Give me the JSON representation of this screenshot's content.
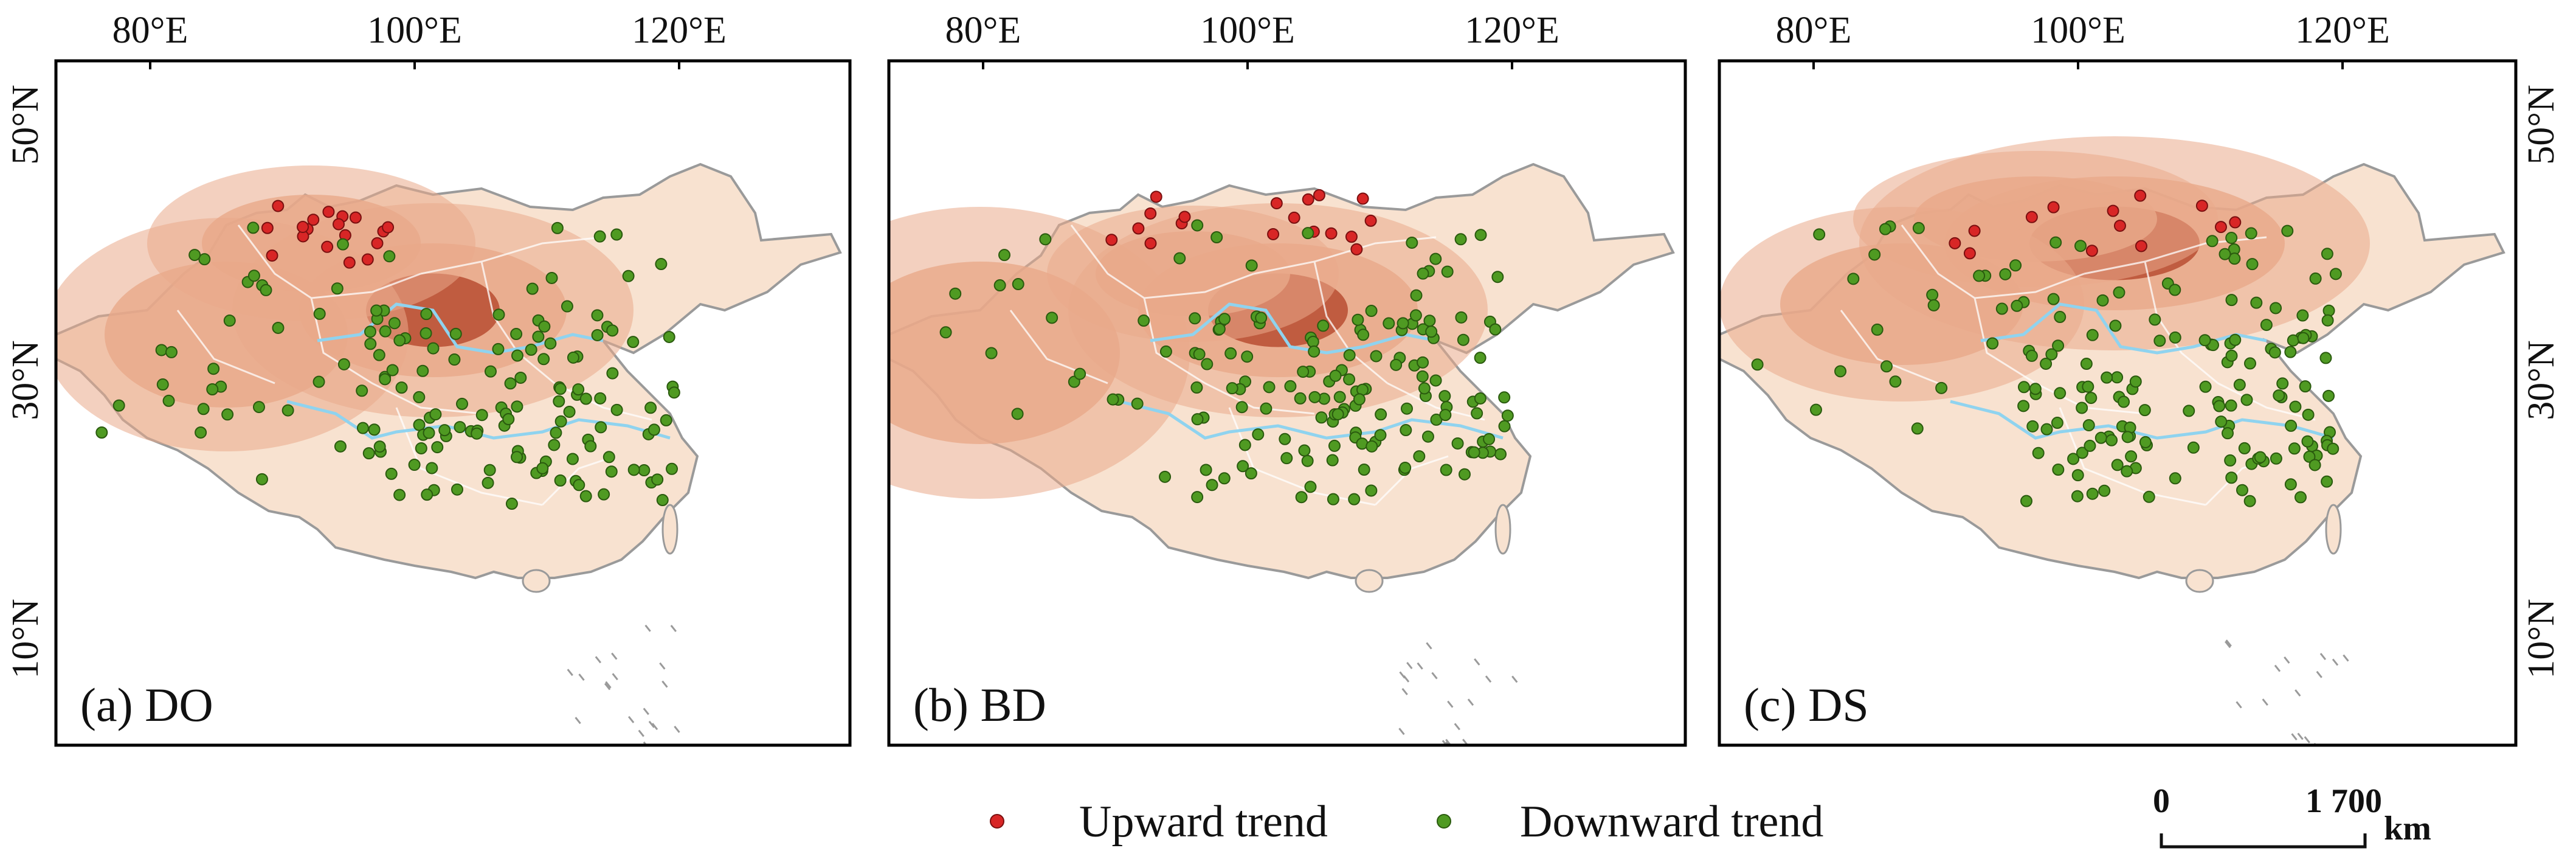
{
  "figure": {
    "colors": {
      "land_light": "#f8e2d0",
      "land_mid": "#e9a98a",
      "land_dark": "#b94e33",
      "coast": "#9a9a9a",
      "border": "#ffffff",
      "river": "#8fd3ef",
      "upward": "#d82626",
      "downward": "#4f9a22",
      "frame": "#000000"
    },
    "axes": {
      "top_ticks": [
        "80°E",
        "100°E",
        "120°E"
      ],
      "right_ticks": [
        "50°N",
        "30°N",
        "10°N"
      ],
      "left_ticks": [
        "50°N",
        "30°N",
        "10°N"
      ]
    },
    "panels": [
      {
        "label": "(a) DO",
        "upward_sites": 18,
        "downward_sites": 160
      },
      {
        "label": "(b) BD",
        "upward_sites": 18,
        "downward_sites": 160
      },
      {
        "label": "(c) DS",
        "upward_sites": 13,
        "downward_sites": 165
      }
    ],
    "legend": {
      "upward_label": "Upward trend",
      "downward_label": "Downward trend"
    },
    "scale_bar": {
      "start": "0",
      "end": "1 700",
      "unit": "km"
    }
  }
}
